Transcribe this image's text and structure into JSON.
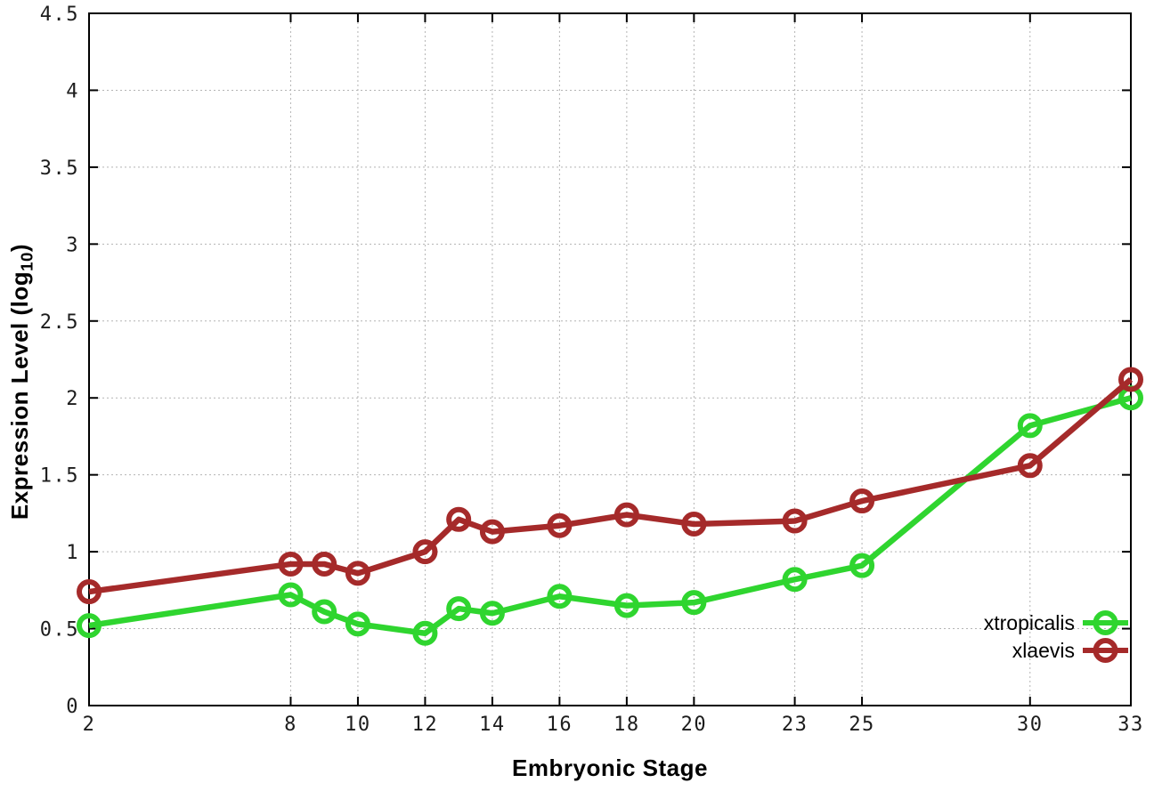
{
  "figure": {
    "xlabel": "Embryonic Stage",
    "ylabel_prefix": "Expression Level (log",
    "ylabel_sub": "10",
    "ylabel_suffix": ")",
    "background": "#ffffff",
    "border_color": "#000000",
    "grid_color": "#b4b4b4",
    "tick_text_color": "#1c1c1c",
    "legend_text_color": "#000000"
  },
  "chart_data": {
    "type": "line",
    "title": "",
    "xlabel": "Embryonic Stage",
    "ylabel": "Expression Level (log10)",
    "x": [
      2,
      8,
      9,
      10,
      12,
      13,
      14,
      16,
      18,
      20,
      23,
      25,
      30,
      33
    ],
    "series": [
      {
        "name": "xtropicalis",
        "color": "#2fd52f",
        "marker": "open-circle",
        "values": [
          0.52,
          0.72,
          0.61,
          0.53,
          0.47,
          0.63,
          0.6,
          0.71,
          0.65,
          0.67,
          0.82,
          0.91,
          1.82,
          2.0
        ]
      },
      {
        "name": "xlaevis",
        "color": "#a52a2a",
        "marker": "open-circle",
        "values": [
          0.74,
          0.92,
          0.92,
          0.86,
          1.0,
          1.21,
          1.13,
          1.17,
          1.24,
          1.18,
          1.2,
          1.33,
          1.56,
          2.12
        ]
      }
    ],
    "xlim": [
      2,
      33
    ],
    "ylim": [
      0,
      4.5
    ],
    "xticks": [
      2,
      8,
      10,
      12,
      14,
      16,
      18,
      20,
      23,
      25,
      30,
      33
    ],
    "xtick_labels": [
      "2",
      "8",
      "10",
      "12",
      "14",
      "16",
      "18",
      "20",
      "23",
      "25",
      "30",
      "33"
    ],
    "yticks": [
      0,
      0.5,
      1,
      1.5,
      2,
      2.5,
      3,
      3.5,
      4,
      4.5
    ],
    "ytick_labels": [
      "0",
      "0.5",
      "1",
      "1.5",
      "2",
      "2.5",
      "3",
      "3.5",
      "4",
      "4.5"
    ],
    "grid": true,
    "grid_style": "dotted",
    "legend_position": "inside-bottom-right",
    "legend_entries": [
      "xtropicalis",
      "xlaevis"
    ]
  }
}
